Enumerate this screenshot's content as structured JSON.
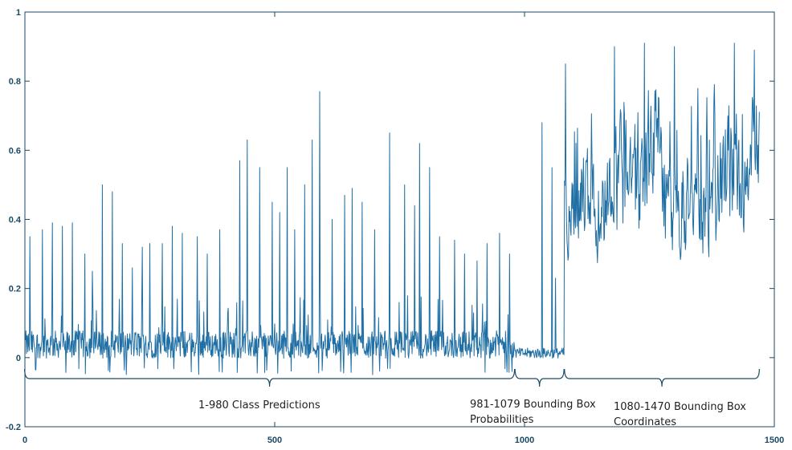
{
  "chart_data": {
    "type": "line",
    "title": "",
    "xlabel": "",
    "ylabel": "",
    "xlim": [
      0,
      1500
    ],
    "ylim": [
      -0.2,
      1
    ],
    "x_ticks": [
      0,
      500,
      1000,
      1500
    ],
    "y_ticks": [
      -0.2,
      0,
      0.2,
      0.4,
      0.6,
      0.8,
      1
    ],
    "x_tick_labels": [
      "0",
      "500",
      "1000",
      "1500"
    ],
    "y_tick_labels": [
      "-0.2",
      "0",
      "0.2",
      "0.4",
      "0.6",
      "0.8",
      "1"
    ],
    "grid": false,
    "line_color": "#1f6fa5",
    "axis_color": "#1a4a63",
    "series": [
      {
        "n_points": 1470,
        "segments": [
          {
            "from": 1,
            "to": 980,
            "baseline": 0.03,
            "noise": 0.04
          },
          {
            "from": 981,
            "to": 1079,
            "baseline": 0.01,
            "noise": 0.015
          },
          {
            "from": 1080,
            "to": 1470,
            "baseline": 0.5,
            "noise": 0.12
          }
        ],
        "spikes": [
          [
            10,
            0.35
          ],
          [
            35,
            0.37
          ],
          [
            55,
            0.39
          ],
          [
            75,
            0.38
          ],
          [
            95,
            0.39
          ],
          [
            120,
            0.3
          ],
          [
            135,
            0.25
          ],
          [
            155,
            0.5
          ],
          [
            175,
            0.48
          ],
          [
            195,
            0.33
          ],
          [
            215,
            0.26
          ],
          [
            235,
            0.32
          ],
          [
            250,
            0.33
          ],
          [
            275,
            0.33
          ],
          [
            295,
            0.38
          ],
          [
            315,
            0.36
          ],
          [
            345,
            0.35
          ],
          [
            365,
            0.3
          ],
          [
            390,
            0.37
          ],
          [
            430,
            0.57
          ],
          [
            445,
            0.63
          ],
          [
            470,
            0.55
          ],
          [
            495,
            0.45
          ],
          [
            510,
            0.42
          ],
          [
            525,
            0.55
          ],
          [
            540,
            0.37
          ],
          [
            560,
            0.5
          ],
          [
            575,
            0.63
          ],
          [
            590,
            0.77
          ],
          [
            615,
            0.4
          ],
          [
            640,
            0.47
          ],
          [
            655,
            0.49
          ],
          [
            675,
            0.45
          ],
          [
            700,
            0.37
          ],
          [
            730,
            0.65
          ],
          [
            760,
            0.5
          ],
          [
            780,
            0.44
          ],
          [
            790,
            0.62
          ],
          [
            810,
            0.55
          ],
          [
            830,
            0.35
          ],
          [
            860,
            0.34
          ],
          [
            880,
            0.3
          ],
          [
            905,
            0.28
          ],
          [
            925,
            0.33
          ],
          [
            950,
            0.36
          ],
          [
            970,
            0.3
          ],
          [
            1035,
            0.68
          ],
          [
            1055,
            0.55
          ],
          [
            1062,
            0.23
          ],
          [
            1082,
            0.85
          ],
          [
            1180,
            0.9
          ],
          [
            1240,
            0.91
          ],
          [
            1300,
            0.9
          ],
          [
            1420,
            0.91
          ],
          [
            1460,
            0.89
          ]
        ]
      }
    ],
    "annotations": [
      {
        "label": "1-980 Class Predictions",
        "x_range": [
          1,
          980
        ]
      },
      {
        "label_lines": [
          "981-1079 Bounding Box",
          "Probabilities"
        ],
        "x_range": [
          981,
          1079
        ]
      },
      {
        "label_lines": [
          "1080-1470 Bounding Box",
          "Coordinates"
        ],
        "x_range": [
          1080,
          1470
        ]
      }
    ]
  }
}
